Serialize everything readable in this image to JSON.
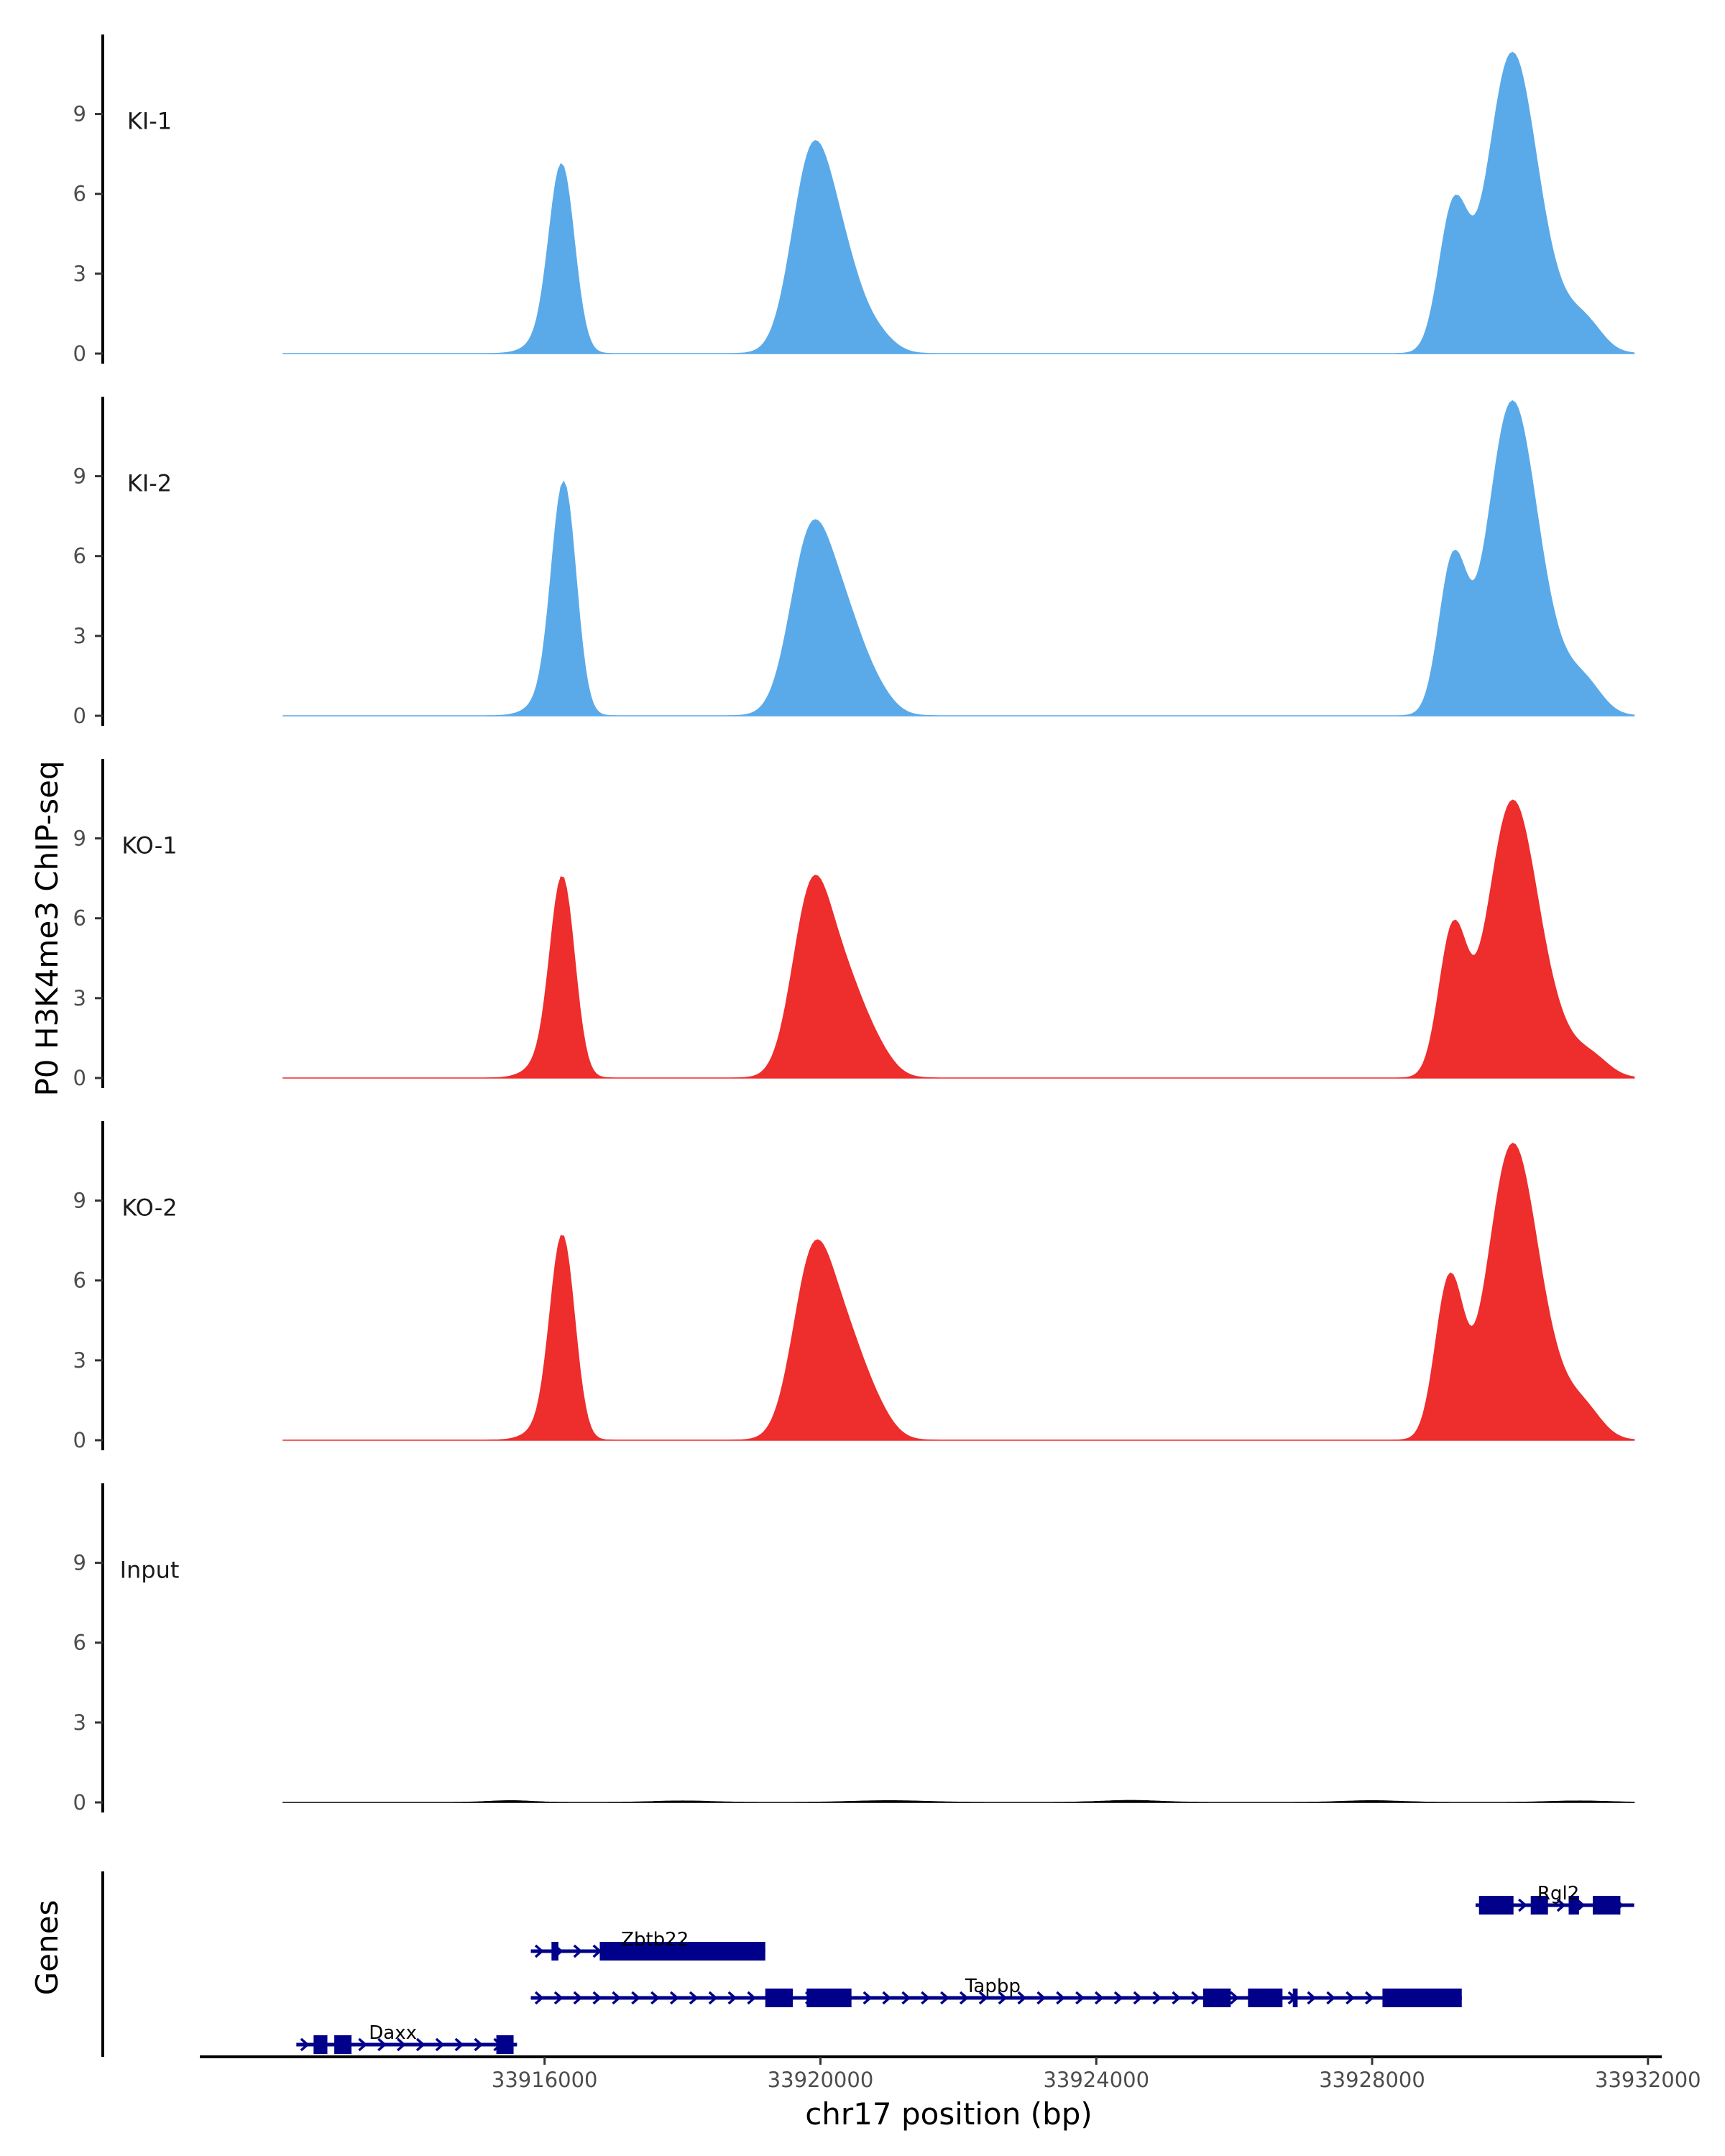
{
  "chart_data": {
    "type": "area",
    "title": "",
    "ylabel": "P0 H3K4me3 ChIP-seq",
    "xlabel": "chr17 position (bp)",
    "xlim": [
      33911000,
      33932200
    ],
    "ylim": [
      0,
      11.5
    ],
    "yticks": [
      0,
      3,
      6,
      9
    ],
    "xticks": [
      33916000,
      33920000,
      33924000,
      33928000,
      33932000
    ],
    "xtick_labels": [
      "33916000",
      "33920000",
      "33924000",
      "33928000",
      "33932000"
    ],
    "tracks": [
      {
        "name": "KI-1",
        "color": "#5aaaea",
        "peaks": [
          [
            33916250,
            6.8,
            180
          ],
          [
            33916020,
            0.5,
            250
          ],
          [
            33919880,
            7.4,
            290
          ],
          [
            33920350,
            2.6,
            260
          ],
          [
            33920800,
            0.7,
            250
          ],
          [
            33929180,
            5.3,
            210
          ],
          [
            33930000,
            10.2,
            340
          ],
          [
            33930450,
            2.0,
            400
          ],
          [
            33931100,
            0.9,
            250
          ]
        ]
      },
      {
        "name": "KI-2",
        "color": "#5aaaea",
        "peaks": [
          [
            33916280,
            8.4,
            175
          ],
          [
            33916050,
            0.6,
            250
          ],
          [
            33919870,
            6.8,
            300
          ],
          [
            33920380,
            2.8,
            270
          ],
          [
            33920800,
            0.8,
            250
          ],
          [
            33929170,
            5.6,
            200
          ],
          [
            33930000,
            10.6,
            340
          ],
          [
            33930450,
            2.2,
            400
          ],
          [
            33931100,
            0.9,
            250
          ]
        ]
      },
      {
        "name": "KO-1",
        "color": "#ee2d2d",
        "peaks": [
          [
            33916260,
            7.2,
            175
          ],
          [
            33916020,
            0.6,
            250
          ],
          [
            33919880,
            7.0,
            280
          ],
          [
            33920380,
            2.9,
            270
          ],
          [
            33920800,
            0.9,
            250
          ],
          [
            33929170,
            5.4,
            200
          ],
          [
            33930000,
            9.2,
            340
          ],
          [
            33930450,
            2.2,
            400
          ],
          [
            33931200,
            0.6,
            250
          ]
        ]
      },
      {
        "name": "KO-2",
        "color": "#ee2d2d",
        "peaks": [
          [
            33916260,
            7.4,
            175
          ],
          [
            33916020,
            0.5,
            250
          ],
          [
            33919900,
            6.9,
            290
          ],
          [
            33920400,
            2.9,
            270
          ],
          [
            33920800,
            0.9,
            250
          ],
          [
            33929120,
            5.9,
            200
          ],
          [
            33930000,
            9.8,
            340
          ],
          [
            33930450,
            2.4,
            400
          ],
          [
            33931100,
            0.8,
            250
          ]
        ]
      },
      {
        "name": "Input",
        "color": "#000000",
        "peaks": [
          [
            33915500,
            0.06,
            300
          ],
          [
            33918000,
            0.05,
            400
          ],
          [
            33921000,
            0.06,
            500
          ],
          [
            33924500,
            0.07,
            400
          ],
          [
            33928000,
            0.06,
            400
          ],
          [
            33931000,
            0.05,
            400
          ]
        ]
      }
    ],
    "genes": [
      {
        "name": "Rgl2",
        "start": 33929500,
        "end": 33931800,
        "row": 0,
        "exons": [
          [
            33929550,
            33930050
          ],
          [
            33930300,
            33930550
          ],
          [
            33930850,
            33931000
          ],
          [
            33931200,
            33931600
          ]
        ]
      },
      {
        "name": "Zbtb22",
        "start": 33915800,
        "end": 33919200,
        "row": 1,
        "exons": [
          [
            33916100,
            33916200
          ],
          [
            33916800,
            33919200
          ]
        ]
      },
      {
        "name": "Tapbp",
        "start": 33915800,
        "end": 33929300,
        "row": 2,
        "exons": [
          [
            33919200,
            33919600
          ],
          [
            33919800,
            33920450
          ],
          [
            33925550,
            33925950
          ],
          [
            33926200,
            33926700
          ],
          [
            33926850,
            33926920
          ],
          [
            33928150,
            33929300
          ]
        ]
      },
      {
        "name": "Daxx",
        "start": 33912400,
        "end": 33915600,
        "row": 3,
        "exons": [
          [
            33912650,
            33912850
          ],
          [
            33912950,
            33913200
          ],
          [
            33915300,
            33915550
          ]
        ]
      }
    ],
    "genes_label": "Genes"
  }
}
